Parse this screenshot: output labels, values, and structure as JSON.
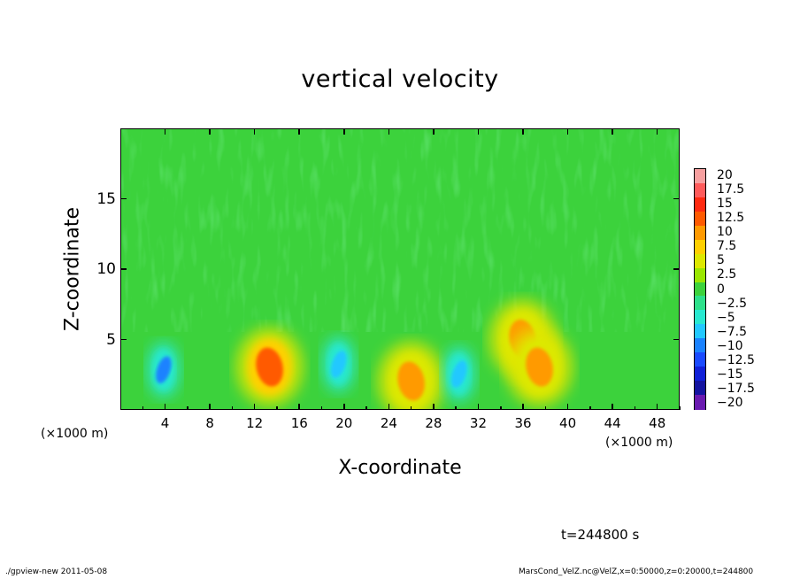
{
  "chart_data": {
    "type": "heatmap",
    "title": "vertical velocity",
    "xlabel": "X-coordinate",
    "ylabel": "Z-coordinate",
    "x_unit_label": "(×1000 m)",
    "xlim": [
      0,
      50
    ],
    "ylim": [
      0,
      20
    ],
    "x_ticks": [
      "4",
      "8",
      "12",
      "16",
      "20",
      "24",
      "28",
      "32",
      "36",
      "40",
      "44",
      "48"
    ],
    "y_ticks": [
      "5",
      "10",
      "15"
    ],
    "colorbar": {
      "labels": [
        "20",
        "17.5",
        "15",
        "12.5",
        "10",
        "7.5",
        "5",
        "2.5",
        "0",
        "−2.5",
        "−5",
        "−7.5",
        "−10",
        "−12.5",
        "−15",
        "−17.5",
        "−20"
      ],
      "colors": [
        "#f7a0a0",
        "#ff5b5b",
        "#ff2a10",
        "#ff5a00",
        "#ff9a00",
        "#ffd000",
        "#dde800",
        "#9ae600",
        "#3cd23c",
        "#2de08a",
        "#28e8d0",
        "#22c8ff",
        "#1a82ff",
        "#1a4aff",
        "#1020d8",
        "#1414a0",
        "#6a1ab0"
      ]
    },
    "features": [
      {
        "type": "downdraft",
        "x": 3.8,
        "z": 2.8,
        "value": -10
      },
      {
        "type": "updraft",
        "x": 13.3,
        "z": 3.0,
        "value": 12.5
      },
      {
        "type": "downdraft",
        "x": 19.5,
        "z": 3.2,
        "value": -7.5
      },
      {
        "type": "updraft",
        "x": 26.0,
        "z": 2.0,
        "value": 10
      },
      {
        "type": "downdraft",
        "x": 30.3,
        "z": 2.5,
        "value": -7.5
      },
      {
        "type": "updraft",
        "x": 36.0,
        "z": 5.0,
        "value": 10
      },
      {
        "type": "updraft",
        "x": 37.5,
        "z": 3.0,
        "value": 10
      }
    ]
  },
  "annotations": {
    "time": "t=244800 s",
    "footer_left": "./gpview-new   2011-05-08",
    "footer_right": "MarsCond_VelZ.nc@VelZ,x=0:50000,z=0:20000,t=244800"
  }
}
